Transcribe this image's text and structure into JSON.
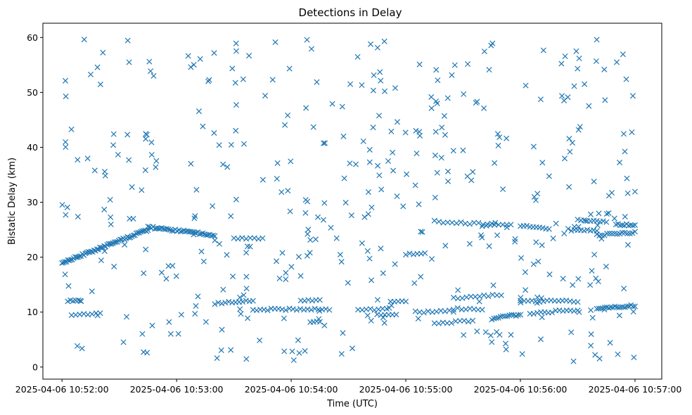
{
  "chart_data": {
    "type": "scatter",
    "title": "Detections in Delay",
    "xlabel": "Time (UTC)",
    "ylabel": "Bistatic Delay (km)",
    "marker": "x",
    "marker_color": "#1f77b4",
    "grid": false,
    "x_axis": {
      "kind": "time",
      "range": [
        "2025-04-06 10:51:50",
        "2025-04-06 10:57:14"
      ],
      "ticks": [
        "2025-04-06 10:52:00",
        "2025-04-06 10:53:00",
        "2025-04-06 10:54:00",
        "2025-04-06 10:55:00",
        "2025-04-06 10:56:00",
        "2025-04-06 10:57:00"
      ]
    },
    "y_axis": {
      "range": [
        -2.2,
        62.6
      ],
      "ticks": [
        0,
        10,
        20,
        30,
        40,
        50,
        60
      ]
    },
    "tracks": [
      {
        "start": "2025-04-06 10:52:00",
        "end": "2025-04-06 10:52:45",
        "y_start": 19.0,
        "y_end": 25.0,
        "points": 60
      },
      {
        "start": "2025-04-06 10:52:45",
        "end": "2025-04-06 10:53:20",
        "y_start": 25.5,
        "y_end": 24.0,
        "points": 40
      },
      {
        "start": "2025-04-06 10:52:03",
        "end": "2025-04-06 10:52:10",
        "y_start": 12.0,
        "y_end": 12.0,
        "points": 6
      },
      {
        "start": "2025-04-06 10:52:05",
        "end": "2025-04-06 10:52:20",
        "y_start": 9.5,
        "y_end": 9.7,
        "points": 8
      },
      {
        "start": "2025-04-06 10:53:30",
        "end": "2025-04-06 10:53:45",
        "y_start": 23.5,
        "y_end": 23.5,
        "points": 8
      },
      {
        "start": "2025-04-06 10:53:20",
        "end": "2025-04-06 10:53:40",
        "y_start": 11.5,
        "y_end": 12.2,
        "points": 12
      },
      {
        "start": "2025-04-06 10:53:40",
        "end": "2025-04-06 10:54:20",
        "y_start": 10.5,
        "y_end": 10.5,
        "points": 22
      },
      {
        "start": "2025-04-06 10:54:05",
        "end": "2025-04-06 10:54:15",
        "y_start": 12.2,
        "y_end": 12.2,
        "points": 6
      },
      {
        "start": "2025-04-06 10:54:10",
        "end": "2025-04-06 10:54:15",
        "y_start": 8.2,
        "y_end": 8.2,
        "points": 4
      },
      {
        "start": "2025-04-06 10:54:35",
        "end": "2025-04-06 10:54:50",
        "y_start": 10.5,
        "y_end": 10.5,
        "points": 8
      },
      {
        "start": "2025-04-06 10:54:45",
        "end": "2025-04-06 10:54:55",
        "y_start": 9.5,
        "y_end": 9.5,
        "points": 6
      },
      {
        "start": "2025-04-06 10:54:52",
        "end": "2025-04-06 10:55:00",
        "y_start": 12.0,
        "y_end": 12.0,
        "points": 5
      },
      {
        "start": "2025-04-06 10:55:00",
        "end": "2025-04-06 10:55:10",
        "y_start": 20.6,
        "y_end": 20.6,
        "points": 6
      },
      {
        "start": "2025-04-06 10:55:05",
        "end": "2025-04-06 10:55:25",
        "y_start": 10.0,
        "y_end": 10.2,
        "points": 10
      },
      {
        "start": "2025-04-06 10:55:15",
        "end": "2025-04-06 10:55:45",
        "y_start": 26.5,
        "y_end": 26.0,
        "points": 14
      },
      {
        "start": "2025-04-06 10:55:15",
        "end": "2025-04-06 10:55:35",
        "y_start": 8.0,
        "y_end": 8.4,
        "points": 10
      },
      {
        "start": "2025-04-06 10:55:25",
        "end": "2025-04-06 10:55:50",
        "y_start": 12.5,
        "y_end": 13.2,
        "points": 12
      },
      {
        "start": "2025-04-06 10:55:25",
        "end": "2025-04-06 10:55:40",
        "y_start": 10.6,
        "y_end": 10.6,
        "points": 8
      },
      {
        "start": "2025-04-06 10:55:40",
        "end": "2025-04-06 10:55:55",
        "y_start": 25.8,
        "y_end": 25.8,
        "points": 8
      },
      {
        "start": "2025-04-06 10:55:45",
        "end": "2025-04-06 10:56:00",
        "y_start": 8.8,
        "y_end": 9.6,
        "points": 14
      },
      {
        "start": "2025-04-06 10:56:00",
        "end": "2025-04-06 10:56:15",
        "y_start": 25.8,
        "y_end": 25.2,
        "points": 10
      },
      {
        "start": "2025-04-06 10:56:00",
        "end": "2025-04-06 10:56:30",
        "y_start": 12.0,
        "y_end": 12.0,
        "points": 16
      },
      {
        "start": "2025-04-06 10:56:05",
        "end": "2025-04-06 10:56:30",
        "y_start": 9.8,
        "y_end": 10.4,
        "points": 14
      },
      {
        "start": "2025-04-06 10:56:25",
        "end": "2025-04-06 10:56:40",
        "y_start": 25.0,
        "y_end": 24.8,
        "points": 10
      },
      {
        "start": "2025-04-06 10:56:30",
        "end": "2025-04-06 10:56:45",
        "y_start": 26.8,
        "y_end": 26.5,
        "points": 10
      },
      {
        "start": "2025-04-06 10:56:40",
        "end": "2025-04-06 10:57:00",
        "y_start": 24.0,
        "y_end": 24.5,
        "points": 16
      },
      {
        "start": "2025-04-06 10:56:40",
        "end": "2025-04-06 10:57:00",
        "y_start": 10.6,
        "y_end": 11.2,
        "points": 20
      },
      {
        "start": "2025-04-06 10:56:50",
        "end": "2025-04-06 10:57:00",
        "y_start": 26.0,
        "y_end": 25.8,
        "points": 10
      }
    ],
    "clutter": {
      "start": "2025-04-06 10:52:00",
      "end": "2025-04-06 10:57:00",
      "y_min": 1.0,
      "y_max": 59.8,
      "points": 420
    }
  }
}
